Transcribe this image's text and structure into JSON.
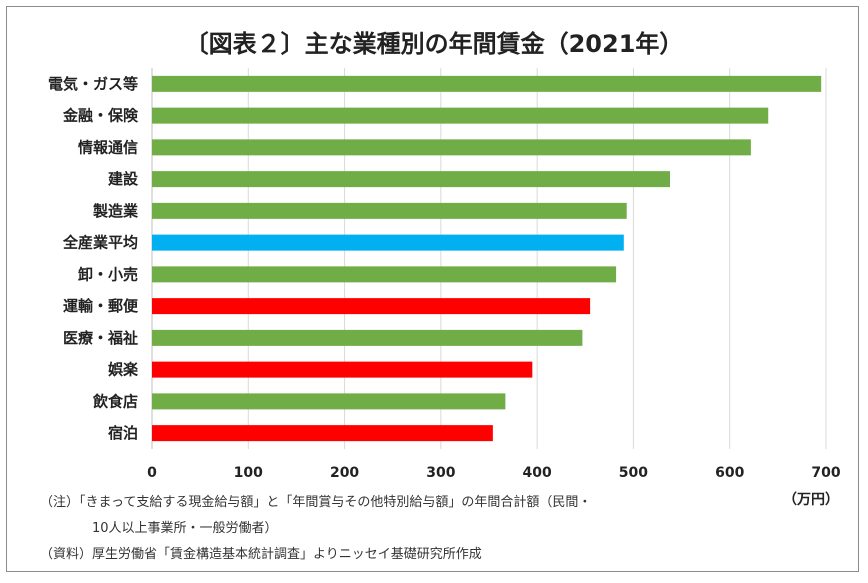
{
  "title": "〔図表２〕主な業種別の年間賃金（2021年）",
  "unit": "（万円）",
  "notes": {
    "line1": "（注）「きまって支給する現金給与額」と「年間賞与その他特別給与額」の年間合計額（民間・",
    "line2": "10人以上事業所・一般労働者）",
    "line3": "（資料）厚生労働省「賃金構造基本統計調査」よりニッセイ基礎研究所作成"
  },
  "colors": {
    "green": "#70ad47",
    "blue": "#00b0f0",
    "red": "#ff0000",
    "grid": "#d9d9d9"
  },
  "chart_data": {
    "type": "bar",
    "orientation": "horizontal",
    "title": "〔図表２〕主な業種別の年間賃金（2021年）",
    "xlabel": "（万円）",
    "ylabel": "",
    "xlim": [
      0,
      700
    ],
    "xticks": [
      0,
      100,
      200,
      300,
      400,
      500,
      600,
      700
    ],
    "grid": true,
    "categories": [
      "電気・ガス等",
      "金融・保険",
      "情報通信",
      "建設",
      "製造業",
      "全産業平均",
      "卸・小売",
      "運輸・郵便",
      "医療・福祉",
      "娯楽",
      "飲食店",
      "宿泊"
    ],
    "values": [
      695,
      640,
      622,
      538,
      493,
      490,
      482,
      455,
      447,
      395,
      367,
      354
    ],
    "bar_colors": [
      "green",
      "green",
      "green",
      "green",
      "green",
      "blue",
      "green",
      "red",
      "green",
      "red",
      "green",
      "red"
    ]
  }
}
